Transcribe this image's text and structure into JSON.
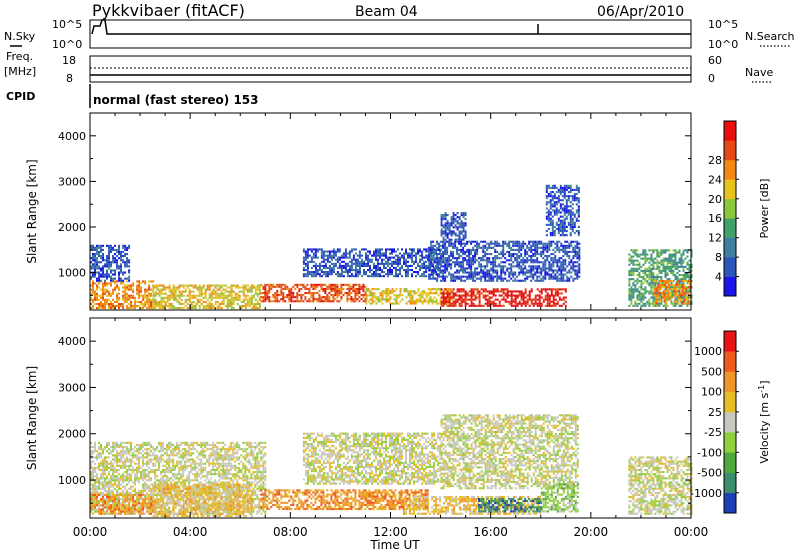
{
  "header": {
    "station": "Pykkvibaer (fitACF)",
    "beam": "Beam 04",
    "date": "06/Apr/2010"
  },
  "side_labels": {
    "nsky": "N.Sky",
    "nsearch": "N.Search",
    "freq_line1": "Freq.",
    "freq_line2": "[MHz]",
    "nave": "Nave",
    "cpid": "CPID"
  },
  "mode_text": "normal (fast stereo) 153",
  "noise_axis": {
    "left_top": "10^5",
    "left_bottom": "10^0",
    "right_top": "10^5",
    "right_bottom": "10^0"
  },
  "freq_axis": {
    "left_top": "18",
    "left_bottom": "8",
    "right_top": "60",
    "right_bottom": "0"
  },
  "chart_data": [
    {
      "type": "heatmap",
      "panel": "power",
      "ylabel": "Slant Range [km]",
      "ylim": [
        180,
        4500
      ],
      "yticks": [
        "1000",
        "2000",
        "3000",
        "4000"
      ],
      "colorbar_label": "Power [dB]",
      "colorbar_ticks": [
        "4",
        "8",
        "12",
        "16",
        "20",
        "24",
        "28"
      ],
      "colors": [
        "#1a14e6",
        "#2e55b8",
        "#3f7fa0",
        "#44a06a",
        "#8cc63e",
        "#e6c31e",
        "#f08a14",
        "#e54a14",
        "#e60e0e"
      ],
      "regions": [
        {
          "t0": 0.0,
          "t1": 2.5,
          "r0": 200,
          "r1": 800,
          "level": 6
        },
        {
          "t0": 0.0,
          "t1": 1.6,
          "r0": 800,
          "r1": 1600,
          "level": 1
        },
        {
          "t0": 2.5,
          "t1": 6.8,
          "r0": 200,
          "r1": 700,
          "level": 5
        },
        {
          "t0": 6.8,
          "t1": 11.0,
          "r0": 350,
          "r1": 750,
          "level": 7
        },
        {
          "t0": 8.5,
          "t1": 14.0,
          "r0": 900,
          "r1": 1500,
          "level": 1
        },
        {
          "t0": 11.0,
          "t1": 14.5,
          "r0": 300,
          "r1": 650,
          "level": 5
        },
        {
          "t0": 14.0,
          "t1": 19.0,
          "r0": 250,
          "r1": 650,
          "level": 8
        },
        {
          "t0": 13.5,
          "t1": 19.5,
          "r0": 800,
          "r1": 1700,
          "level": 1
        },
        {
          "t0": 14.0,
          "t1": 15.0,
          "r0": 1700,
          "r1": 2300,
          "level": 1
        },
        {
          "t0": 18.2,
          "t1": 19.5,
          "r0": 1800,
          "r1": 2900,
          "level": 1
        },
        {
          "t0": 21.5,
          "t1": 24.0,
          "r0": 250,
          "r1": 1500,
          "level": 3
        },
        {
          "t0": 22.5,
          "t1": 24.0,
          "r0": 300,
          "r1": 800,
          "level": 6
        }
      ]
    },
    {
      "type": "heatmap",
      "panel": "velocity",
      "xlabel": "Time UT",
      "ylabel": "Slant Range [km]",
      "ylim": [
        180,
        4500
      ],
      "yticks": [
        "1000",
        "2000",
        "3000",
        "4000"
      ],
      "x_ticks": [
        "00:00",
        "04:00",
        "08:00",
        "12:00",
        "16:00",
        "20:00",
        "00:00"
      ],
      "colorbar_label": "Velocity [m s",
      "colorbar_superscript": "-1",
      "colorbar_close": "]",
      "colorbar_ticks": [
        "1000",
        "500",
        "100",
        "25",
        "-25",
        "-100",
        "-500",
        "-1000"
      ],
      "colors": [
        "#1c3fb4",
        "#3c8c6e",
        "#4ea83c",
        "#8fd03c",
        "#c8c8c0",
        "#e6be28",
        "#f09628",
        "#f05a1e",
        "#e61414"
      ],
      "regions": [
        {
          "t0": 0.0,
          "t1": 7.0,
          "r0": 250,
          "r1": 1800,
          "level": 4
        },
        {
          "t0": 0.0,
          "t1": 2.5,
          "r0": 250,
          "r1": 700,
          "level": 6
        },
        {
          "t0": 2.5,
          "t1": 6.5,
          "r0": 200,
          "r1": 900,
          "level": 5
        },
        {
          "t0": 6.8,
          "t1": 13.5,
          "r0": 350,
          "r1": 800,
          "level": 6
        },
        {
          "t0": 8.5,
          "t1": 14.0,
          "r0": 900,
          "r1": 2000,
          "level": 4
        },
        {
          "t0": 12.5,
          "t1": 18.0,
          "r0": 250,
          "r1": 650,
          "level": 5
        },
        {
          "t0": 15.5,
          "t1": 18.0,
          "r0": 300,
          "r1": 600,
          "level": 1
        },
        {
          "t0": 14.0,
          "t1": 19.5,
          "r0": 800,
          "r1": 2400,
          "level": 4
        },
        {
          "t0": 18.0,
          "t1": 19.5,
          "r0": 300,
          "r1": 900,
          "level": 3
        },
        {
          "t0": 21.5,
          "t1": 24.0,
          "r0": 250,
          "r1": 1500,
          "level": 4
        }
      ]
    }
  ]
}
